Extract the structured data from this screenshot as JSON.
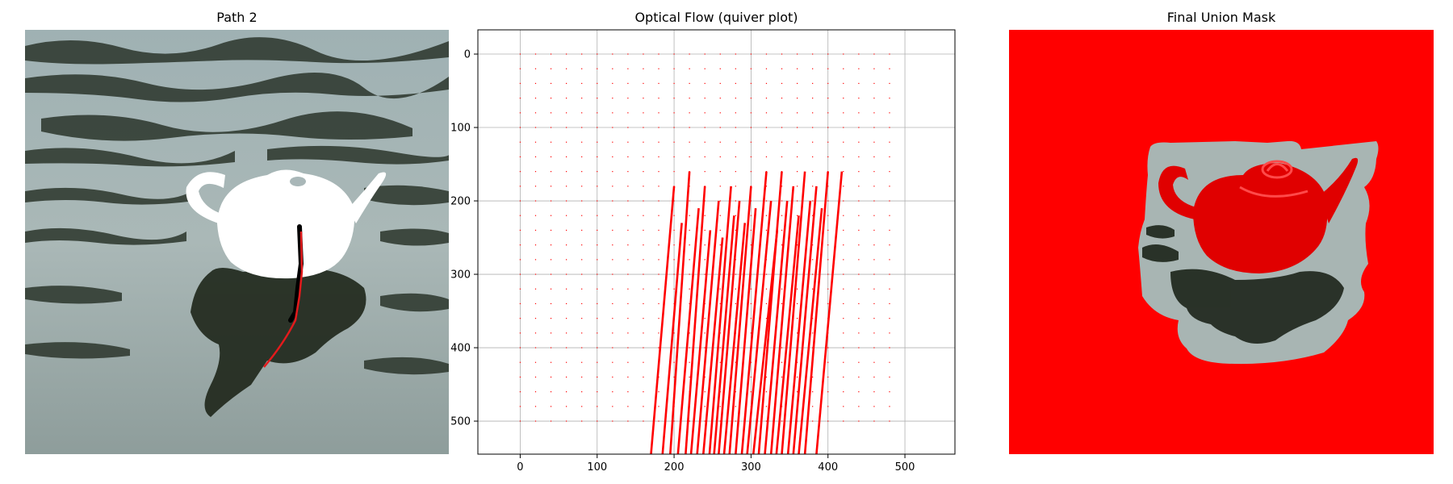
{
  "panels": {
    "left": {
      "title": "Path 2",
      "image": "water-teapot-photo"
    },
    "right": {
      "title": "Final Union Mask",
      "image": "masked-red-teapot-photo"
    }
  },
  "colors": {
    "water_light": "#a9b7b8",
    "water_dark": "#2a3328",
    "mask_red": "#ff0000",
    "teapot_white": "#ffffff",
    "path_black": "#000000",
    "path_red": "#e41a1c"
  },
  "chart_data": {
    "type": "quiver",
    "title": "Optical Flow (quiver plot)",
    "xlabel": "",
    "ylabel": "",
    "xlim": [
      -55,
      565
    ],
    "ylim": [
      545,
      -33
    ],
    "xticks": [
      0,
      100,
      200,
      300,
      400,
      500
    ],
    "yticks": [
      0,
      100,
      200,
      300,
      400,
      500
    ],
    "xtick_labels": [
      "0",
      "100",
      "200",
      "300",
      "400",
      "500"
    ],
    "ytick_labels": [
      "0",
      "100",
      "200",
      "300",
      "400",
      "500"
    ],
    "grid": true,
    "color": "#ff0000",
    "dot_grid": {
      "x_start": 0,
      "x_step": 20,
      "x_count": 25,
      "y_start": 0,
      "y_step": 20,
      "y_count": 26
    },
    "vectors": [
      {
        "x0": 170,
        "y0": 545,
        "x1": 200,
        "y1": 180
      },
      {
        "x0": 185,
        "y0": 545,
        "x1": 210,
        "y1": 230
      },
      {
        "x0": 195,
        "y0": 545,
        "x1": 220,
        "y1": 160
      },
      {
        "x0": 205,
        "y0": 545,
        "x1": 232,
        "y1": 210
      },
      {
        "x0": 215,
        "y0": 545,
        "x1": 240,
        "y1": 180
      },
      {
        "x0": 222,
        "y0": 545,
        "x1": 247,
        "y1": 240
      },
      {
        "x0": 230,
        "y0": 545,
        "x1": 258,
        "y1": 200
      },
      {
        "x0": 238,
        "y0": 545,
        "x1": 263,
        "y1": 250
      },
      {
        "x0": 246,
        "y0": 545,
        "x1": 274,
        "y1": 180
      },
      {
        "x0": 252,
        "y0": 545,
        "x1": 278,
        "y1": 220
      },
      {
        "x0": 258,
        "y0": 545,
        "x1": 285,
        "y1": 200
      },
      {
        "x0": 265,
        "y0": 545,
        "x1": 292,
        "y1": 230
      },
      {
        "x0": 272,
        "y0": 545,
        "x1": 300,
        "y1": 180
      },
      {
        "x0": 280,
        "y0": 545,
        "x1": 306,
        "y1": 210
      },
      {
        "x0": 288,
        "y0": 545,
        "x1": 320,
        "y1": 160
      },
      {
        "x0": 295,
        "y0": 545,
        "x1": 326,
        "y1": 200
      },
      {
        "x0": 303,
        "y0": 545,
        "x1": 334,
        "y1": 240
      },
      {
        "x0": 310,
        "y0": 545,
        "x1": 340,
        "y1": 160
      },
      {
        "x0": 318,
        "y0": 545,
        "x1": 347,
        "y1": 200
      },
      {
        "x0": 326,
        "y0": 545,
        "x1": 355,
        "y1": 180
      },
      {
        "x0": 333,
        "y0": 545,
        "x1": 362,
        "y1": 220
      },
      {
        "x0": 340,
        "y0": 545,
        "x1": 370,
        "y1": 160
      },
      {
        "x0": 348,
        "y0": 545,
        "x1": 377,
        "y1": 200
      },
      {
        "x0": 355,
        "y0": 545,
        "x1": 385,
        "y1": 180
      },
      {
        "x0": 362,
        "y0": 545,
        "x1": 392,
        "y1": 210
      },
      {
        "x0": 370,
        "y0": 545,
        "x1": 400,
        "y1": 160
      },
      {
        "x0": 385,
        "y0": 545,
        "x1": 418,
        "y1": 160
      }
    ]
  }
}
